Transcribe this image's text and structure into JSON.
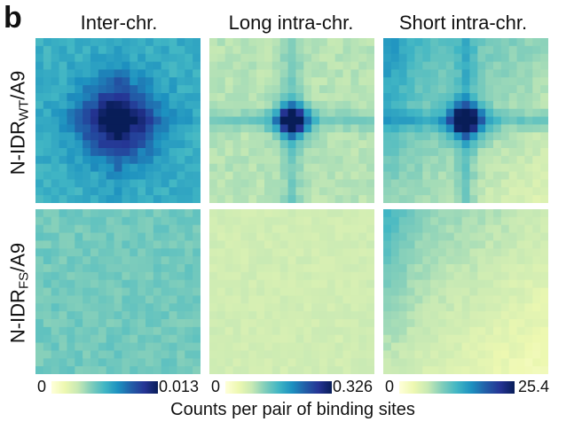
{
  "panel_letter": "b",
  "chart_data": {
    "type": "heatmap",
    "columns": [
      "Inter-chr.",
      "Long intra-chr.",
      "Short intra-chr."
    ],
    "rows": [
      {
        "prefix": "N-IDR",
        "sub": "WT",
        "suffix": "/A9"
      },
      {
        "prefix": "N-IDR",
        "sub": "FS",
        "suffix": "/A9"
      }
    ],
    "colorbars": [
      {
        "min": "0",
        "max": "0.013",
        "vmax": 0.013
      },
      {
        "min": "0",
        "max": "0.326",
        "vmax": 0.326
      },
      {
        "min": "0",
        "max": "25.4",
        "vmax": 25.4
      }
    ],
    "xlabel": "Counts per pair of binding sites",
    "colormap": [
      "#ffffd9",
      "#edf8b1",
      "#c7e9b4",
      "#7fcdbb",
      "#41b6c4",
      "#1d91c0",
      "#225ea8",
      "#253494",
      "#081d58"
    ],
    "grid_size": 21,
    "panels": [
      {
        "row": 0,
        "col": 0,
        "background": 0.52,
        "peak": 0.48,
        "spot": 0.9,
        "halo": 3.5,
        "stripe": 0.05,
        "gradient": 0.0,
        "noise": 0.05
      },
      {
        "row": 0,
        "col": 1,
        "background": 0.28,
        "peak": 0.68,
        "spot": 0.4,
        "halo": 1.5,
        "stripe": 0.12,
        "gradient": 0.0,
        "noise": 0.03
      },
      {
        "row": 0,
        "col": 2,
        "background": 0.34,
        "peak": 0.64,
        "spot": 0.5,
        "halo": 1.6,
        "stripe": 0.14,
        "gradient": 0.2,
        "noise": 0.03
      },
      {
        "row": 1,
        "col": 0,
        "background": 0.4,
        "peak": 0.0,
        "spot": 0.0,
        "halo": 1.0,
        "stripe": 0.0,
        "gradient": 0.0,
        "noise": 0.04
      },
      {
        "row": 1,
        "col": 1,
        "background": 0.22,
        "peak": 0.0,
        "spot": 0.0,
        "halo": 1.0,
        "stripe": 0.0,
        "gradient": 0.0,
        "noise": 0.025
      },
      {
        "row": 1,
        "col": 2,
        "background": 0.24,
        "peak": 0.0,
        "spot": 0.0,
        "halo": 1.0,
        "stripe": 0.0,
        "gradient": 0.18,
        "noise": 0.025
      }
    ]
  }
}
